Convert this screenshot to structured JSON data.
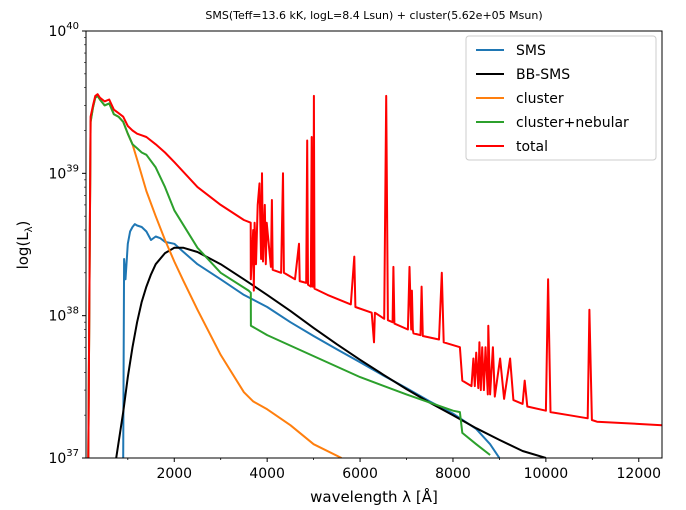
{
  "chart_data": {
    "type": "line",
    "title": "SMS(Teff=13.6 kK, logL=8.4 Lsun) + cluster(5.62e+05 Msun)",
    "xlabel": "wavelength λ [Å]",
    "ylabel": "log(L_λ)",
    "xlim": [
      100,
      12500
    ],
    "ylim": [
      1e+37,
      1e+40
    ],
    "yscale": "log",
    "grid": false,
    "legend_position": "top-right",
    "x_ticks": [
      2000,
      4000,
      6000,
      8000,
      10000,
      12000
    ],
    "x_tick_labels": [
      "2000",
      "4000",
      "6000",
      "8000",
      "10000",
      "12000"
    ],
    "y_ticks": [
      1e+37,
      1e+38,
      1e+39,
      1e+40
    ],
    "y_tick_labels": [
      {
        "base": "10",
        "exp": "37"
      },
      {
        "base": "10",
        "exp": "38"
      },
      {
        "base": "10",
        "exp": "39"
      },
      {
        "base": "10",
        "exp": "40"
      }
    ],
    "series": [
      {
        "name": "SMS",
        "color": "#1f77b4",
        "x": [
          900,
          920,
          950,
          1000,
          1050,
          1100,
          1150,
          1200,
          1300,
          1400,
          1500,
          1600,
          1700,
          1800,
          2000,
          2200,
          2500,
          3000,
          3500,
          4000,
          4500,
          5000,
          5500,
          6000,
          6500,
          7000,
          7500,
          8000,
          8500,
          8800,
          9000
        ],
        "y": [
          1e+37,
          2.5e+38,
          1.8e+38,
          3.2e+38,
          3.9e+38,
          4.2e+38,
          4.4e+38,
          4.3e+38,
          4.2e+38,
          3.9e+38,
          3.4e+38,
          3.6e+38,
          3.5e+38,
          3.3e+38,
          3.2e+38,
          2.8e+38,
          2.3e+38,
          1.8e+38,
          1.4e+38,
          1.15e+38,
          9e+37,
          7.2e+37,
          5.8e+37,
          4.7e+37,
          3.8e+37,
          3.1e+37,
          2.5e+37,
          2.05e+37,
          1.6e+37,
          1.25e+37,
          1e+37
        ]
      },
      {
        "name": "BB-SMS",
        "color": "#000000",
        "x": [
          750,
          900,
          1000,
          1100,
          1200,
          1300,
          1400,
          1500,
          1600,
          1800,
          2000,
          2200,
          2500,
          3000,
          3500,
          4000,
          4500,
          5000,
          5500,
          6000,
          6500,
          7000,
          7500,
          8000,
          8500,
          9000,
          9500,
          10000
        ],
        "y": [
          1e+37,
          2.1e+37,
          3.7e+37,
          6e+37,
          9e+37,
          1.25e+38,
          1.6e+38,
          1.95e+38,
          2.3e+38,
          2.75e+38,
          3e+38,
          3e+38,
          2.8e+38,
          2.3e+38,
          1.8e+38,
          1.4e+38,
          1.08e+38,
          8.2e+37,
          6.3e+37,
          4.9e+37,
          3.85e+37,
          3.05e+37,
          2.45e+37,
          2e+37,
          1.62e+37,
          1.34e+37,
          1.12e+37,
          1e+37
        ]
      },
      {
        "name": "cluster",
        "color": "#ff7f0e",
        "x": [
          150,
          200,
          250,
          300,
          350,
          400,
          500,
          600,
          700,
          800,
          900,
          1000,
          1100,
          1200,
          1400,
          1600,
          1800,
          2000,
          2200,
          2500,
          3000,
          3500,
          3700,
          4000,
          4500,
          5000,
          5600
        ],
        "y": [
          1e+37,
          2.3e+39,
          2.9e+39,
          3.4e+39,
          3.5e+39,
          3.3e+39,
          3e+39,
          3.1e+39,
          2.6e+39,
          2.5e+39,
          2.3e+39,
          1.9e+39,
          1.6e+39,
          1.25e+39,
          7.5e+38,
          5e+38,
          3.4e+38,
          2.4e+38,
          1.75e+38,
          1.1e+38,
          5.3e+37,
          2.9e+37,
          2.5e+37,
          2.2e+37,
          1.7e+37,
          1.25e+37,
          1e+37
        ]
      },
      {
        "name": "cluster+nebular",
        "color": "#2ca02c",
        "x": [
          150,
          200,
          250,
          300,
          350,
          400,
          500,
          600,
          700,
          800,
          900,
          1000,
          1100,
          1200,
          1300,
          1400,
          1600,
          1800,
          2000,
          2500,
          3000,
          3600,
          3648,
          3650,
          4000,
          5000,
          6000,
          7000,
          8000,
          8150,
          8200,
          8500,
          8800
        ],
        "y": [
          1e+37,
          2.3e+39,
          2.9e+39,
          3.4e+39,
          3.5e+39,
          3.3e+39,
          3e+39,
          3.1e+39,
          2.6e+39,
          2.5e+39,
          2.3e+39,
          1.9e+39,
          1.6e+39,
          1.5e+39,
          1.4e+39,
          1.35e+39,
          1.1e+39,
          8e+38,
          5.5e+38,
          3e+38,
          2e+38,
          1.5e+38,
          1.45e+38,
          8.5e+37,
          7.3e+37,
          5.2e+37,
          3.7e+37,
          2.8e+37,
          2.15e+37,
          2.1e+37,
          1.5e+37,
          1.25e+37,
          1.05e+37
        ]
      },
      {
        "name": "total",
        "color": "#ff0000",
        "x": [
          150,
          200,
          250,
          300,
          350,
          400,
          500,
          600,
          700,
          800,
          900,
          1000,
          1100,
          1200,
          1300,
          1400,
          1600,
          1800,
          2000,
          2500,
          3000,
          3500,
          3645,
          3648,
          3660,
          3700,
          3712,
          3730,
          3760,
          3797,
          3835,
          3870,
          3889,
          3910,
          3950,
          3970,
          3990,
          4080,
          4101,
          4120,
          4300,
          4340,
          4360,
          4600,
          4686,
          4700,
          4840,
          4861,
          4880,
          4940,
          4959,
          4975,
          4995,
          5007,
          5020,
          5300,
          5800,
          5876,
          5900,
          6250,
          6300,
          6320,
          6520,
          6563,
          6600,
          6700,
          6717,
          6740,
          7030,
          7065,
          7100,
          7115,
          7135,
          7150,
          7300,
          7325,
          7350,
          7700,
          7760,
          7800,
          8150,
          8200,
          8400,
          8440,
          8470,
          8500,
          8545,
          8570,
          8600,
          8630,
          8665,
          8700,
          8750,
          8760,
          8800,
          8860,
          8900,
          9014,
          9100,
          9229,
          9300,
          9500,
          9545,
          9600,
          10000,
          10049,
          10100,
          10500,
          10900,
          10938,
          10990,
          11100,
          12500
        ],
        "y": [
          1e+37,
          2.5e+39,
          3e+39,
          3.5e+39,
          3.6e+39,
          3.4e+39,
          3.2e+39,
          3.3e+39,
          2.8e+39,
          2.65e+39,
          2.5e+39,
          2.15e+39,
          2e+39,
          1.9e+39,
          1.85e+39,
          1.8e+39,
          1.6e+39,
          1.4e+39,
          1.2e+39,
          8e+38,
          6e+38,
          4.7e+38,
          4.5e+38,
          1.8e+38,
          2.2e+38,
          4e+38,
          1.5e+38,
          4.5e+38,
          2.3e+38,
          6e+38,
          8.5e+38,
          2.5e+38,
          1e+39,
          2.4e+38,
          6e+38,
          2.3e+38,
          4.5e+38,
          2.2e+38,
          6.5e+38,
          2.1e+38,
          2e+38,
          1e+39,
          2e+38,
          1.8e+38,
          3.2e+38,
          1.75e+38,
          1.7e+38,
          1.7e+39,
          1.65e+38,
          1.6e+38,
          1.8e+39,
          1.6e+38,
          1.6e+38,
          3.5e+39,
          1.55e+38,
          1.4e+38,
          1.2e+38,
          2.6e+38,
          1.15e+38,
          1.05e+38,
          6.5e+37,
          1.05e+38,
          9.5e+37,
          3.5e+39,
          9.3e+37,
          9e+37,
          2.2e+38,
          8.8e+37,
          8e+37,
          2.2e+38,
          8e+37,
          1.5e+38,
          8e+37,
          7.5e+37,
          7.3e+37,
          1.6e+38,
          7.2e+37,
          6.8e+37,
          2e+38,
          6.5e+37,
          6e+37,
          3.5e+37,
          3.2e+37,
          5e+37,
          3.2e+37,
          5.5e+37,
          3.1e+37,
          6.5e+37,
          3e+37,
          6e+37,
          3e+37,
          6e+37,
          2.8e+37,
          8.5e+37,
          2.8e+37,
          6e+37,
          2.7e+37,
          5e+37,
          2.6e+37,
          5e+37,
          2.55e+37,
          2.4e+37,
          3.5e+37,
          2.3e+37,
          2.15e+37,
          1.8e+38,
          2.1e+37,
          2e+37,
          1.9e+37,
          1.1e+38,
          1.85e+37,
          1.8e+37,
          1.7e+37
        ]
      }
    ]
  }
}
